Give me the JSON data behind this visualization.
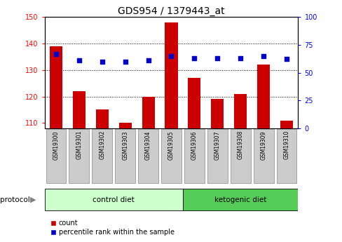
{
  "title": "GDS954 / 1379443_at",
  "samples": [
    "GSM19300",
    "GSM19301",
    "GSM19302",
    "GSM19303",
    "GSM19304",
    "GSM19305",
    "GSM19306",
    "GSM19307",
    "GSM19308",
    "GSM19309",
    "GSM19310"
  ],
  "bar_values": [
    139,
    122,
    115,
    110,
    120,
    148,
    127,
    119,
    121,
    132,
    111
  ],
  "percentile_values": [
    67,
    61,
    60,
    60,
    61,
    65,
    63,
    63,
    63,
    65,
    62
  ],
  "ylim_left": [
    108,
    150
  ],
  "ylim_right": [
    0,
    100
  ],
  "yticks_left": [
    110,
    120,
    130,
    140,
    150
  ],
  "yticks_right": [
    0,
    25,
    50,
    75,
    100
  ],
  "bar_color": "#cc0000",
  "dot_color": "#0000cc",
  "control_label": "control diet",
  "ketogenic_label": "ketogenic diet",
  "protocol_label": "protocol",
  "legend_count": "count",
  "legend_percentile": "percentile rank within the sample",
  "control_bg": "#ccffcc",
  "ketogenic_bg": "#55cc55",
  "sample_bg": "#cccccc",
  "n_control": 6,
  "n_ketogenic": 5,
  "title_fontsize": 10,
  "tick_fontsize": 7,
  "label_fontsize": 8
}
